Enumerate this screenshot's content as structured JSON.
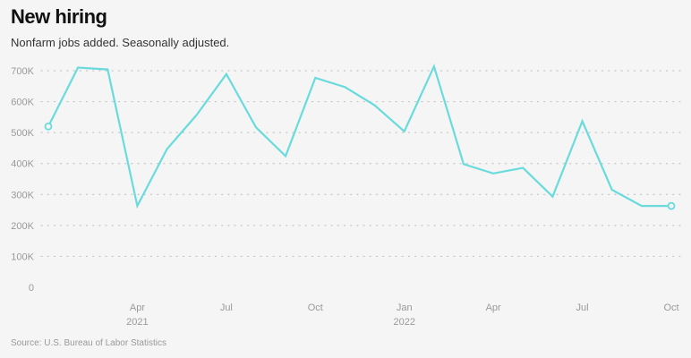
{
  "title": "New hiring",
  "subtitle": "Nonfarm jobs added. Seasonally adjusted.",
  "source": "Source: U.S. Bureau of Labor Statistics",
  "colors": {
    "line": "#6adbdc",
    "grid": "#c8c8c8",
    "tick_text": "#9a9a9a",
    "background": "#f5f5f5"
  },
  "chart_data": {
    "type": "line",
    "title": "New hiring",
    "subtitle": "Nonfarm jobs added. Seasonally adjusted.",
    "xlabel": "",
    "ylabel": "",
    "ylim": [
      0,
      700000
    ],
    "yticks": [
      0,
      100000,
      200000,
      300000,
      400000,
      500000,
      600000,
      700000
    ],
    "ytick_labels": [
      "0",
      "100K",
      "200K",
      "300K",
      "400K",
      "500K",
      "600K",
      "700K"
    ],
    "grid": "horizontal-dotted",
    "legend": "none",
    "x": [
      "2021-01",
      "2021-02",
      "2021-03",
      "2021-04",
      "2021-05",
      "2021-06",
      "2021-07",
      "2021-08",
      "2021-09",
      "2021-10",
      "2021-11",
      "2021-12",
      "2022-01",
      "2022-02",
      "2022-03",
      "2022-04",
      "2022-05",
      "2022-06",
      "2022-07",
      "2022-08",
      "2022-09",
      "2022-10"
    ],
    "xticks": [
      {
        "x": "2021-04",
        "label": "Apr",
        "year": "2021"
      },
      {
        "x": "2021-07",
        "label": "Jul",
        "year": ""
      },
      {
        "x": "2021-10",
        "label": "Oct",
        "year": ""
      },
      {
        "x": "2022-01",
        "label": "Jan",
        "year": "2022"
      },
      {
        "x": "2022-04",
        "label": "Apr",
        "year": ""
      },
      {
        "x": "2022-07",
        "label": "Jul",
        "year": ""
      },
      {
        "x": "2022-10",
        "label": "Oct",
        "year": ""
      }
    ],
    "series": [
      {
        "values": [
          520000,
          710000,
          704000,
          263000,
          447000,
          557000,
          689000,
          517000,
          424000,
          677000,
          647000,
          588000,
          504000,
          714000,
          398000,
          368000,
          386000,
          293000,
          537000,
          315000,
          263000,
          263000
        ]
      }
    ],
    "endpoint_markers": "hollow-circle"
  }
}
